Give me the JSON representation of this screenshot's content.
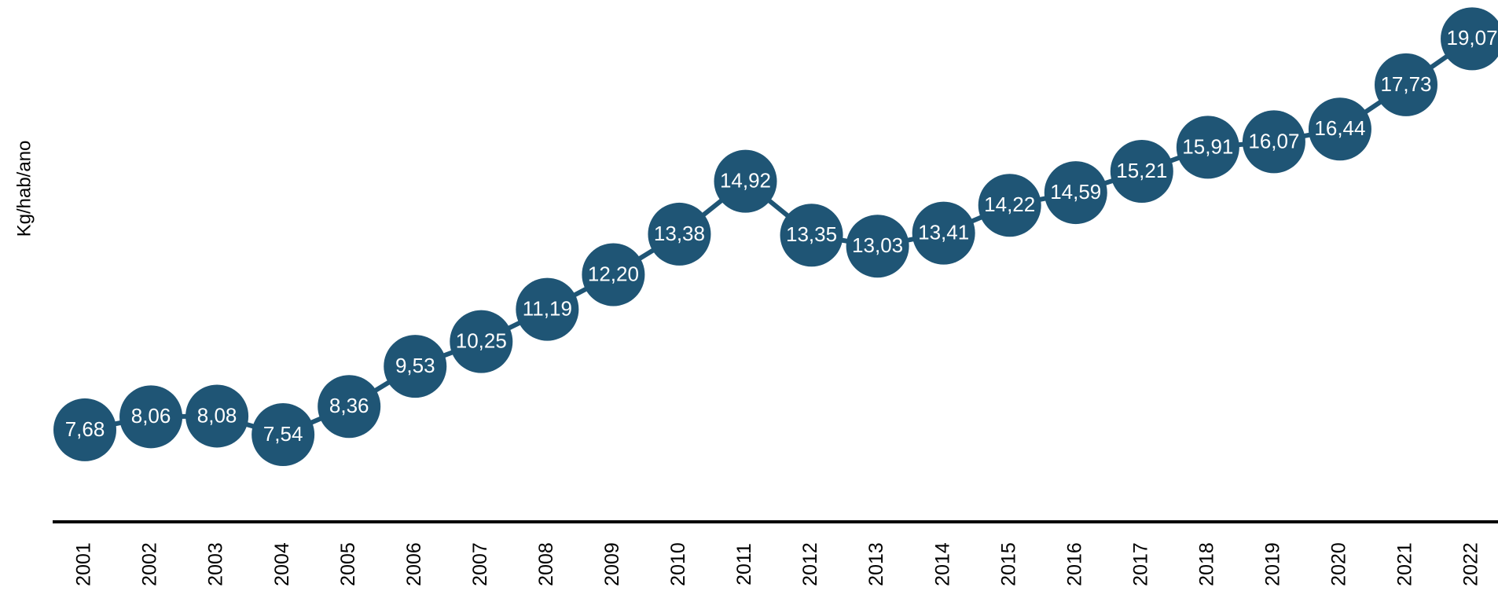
{
  "chart_data": {
    "type": "line",
    "y_label": "Kg/hab/ano",
    "categories": [
      "2001",
      "2002",
      "2003",
      "2004",
      "2005",
      "2006",
      "2007",
      "2008",
      "2009",
      "2010",
      "2011",
      "2012",
      "2013",
      "2014",
      "2015",
      "2016",
      "2017",
      "2018",
      "2019",
      "2020",
      "2021",
      "2022"
    ],
    "values": [
      7.68,
      8.06,
      8.08,
      7.54,
      8.36,
      9.53,
      10.25,
      11.19,
      12.2,
      13.38,
      14.92,
      13.35,
      13.03,
      13.41,
      14.22,
      14.59,
      15.21,
      15.91,
      16.07,
      16.44,
      17.73,
      19.07
    ],
    "value_labels": [
      "7,68",
      "8,06",
      "8,08",
      "7,54",
      "8,36",
      "9,53",
      "10,25",
      "11,19",
      "12,20",
      "13,38",
      "14,92",
      "13,35",
      "13,03",
      "13,41",
      "14,22",
      "14,59",
      "15,21",
      "15,91",
      "16,07",
      "16,44",
      "17,73",
      "19,07"
    ],
    "color": "#1f5575",
    "ylim": [
      5,
      20.2
    ]
  }
}
